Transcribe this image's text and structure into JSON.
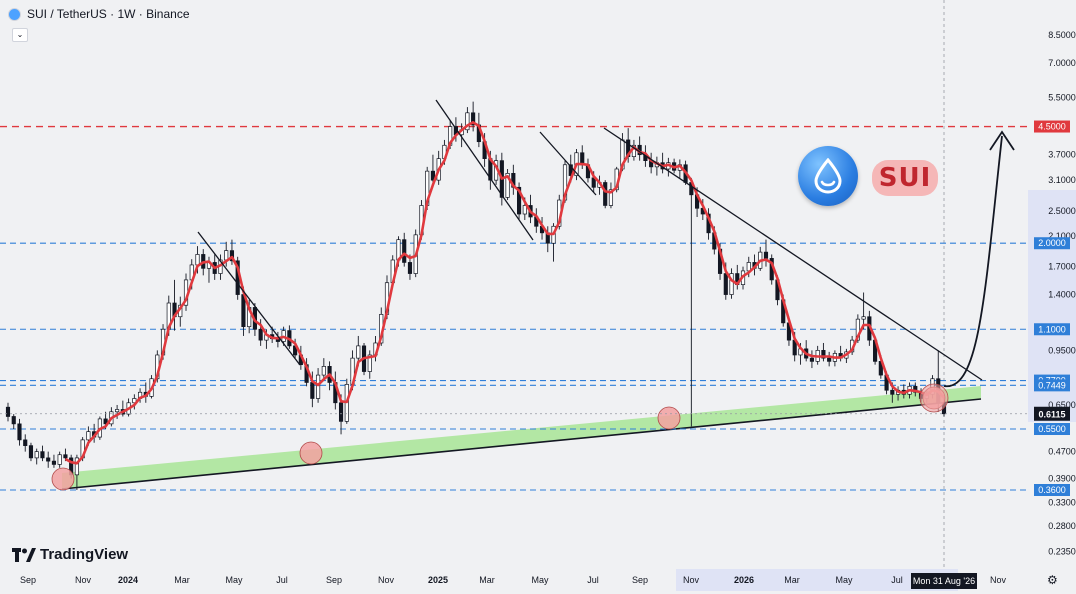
{
  "header": {
    "title": "SUI / TetherUS · 1W · Binance",
    "collapse_icon": "chevron-down-icon"
  },
  "branding": {
    "tradingview": "TradingView",
    "coin_badge": "SUI"
  },
  "colors": {
    "background": "#f0f1f3",
    "candle_up": "#ffffff",
    "candle_down": "#131722",
    "ma_line": "#e0393e",
    "resistance": "#e0393e",
    "support_level": "#2f7fd8",
    "trendline": "#131722",
    "channel_fill": "#9fe38a",
    "circle_fill": "#f2a1a1"
  },
  "chart_data": {
    "type": "candlestick",
    "symbol": "SUI / TetherUS",
    "interval": "1W",
    "exchange": "Binance",
    "y_scale": "log",
    "ylim": [
      0.23,
      9.5
    ],
    "y_ticks": [
      "8.5000",
      "7.0000",
      "5.5000",
      "3.7000",
      "3.1000",
      "2.5000",
      "2.1000",
      "1.7000",
      "1.4000",
      "0.9500",
      "0.6500",
      "0.4700",
      "0.3900",
      "0.3300",
      "0.2800",
      "0.2350"
    ],
    "x_ticks": [
      "Sep",
      "Nov",
      "2024",
      "Mar",
      "May",
      "Jul",
      "Sep",
      "Nov",
      "2025",
      "Mar",
      "May",
      "Jul",
      "Sep",
      "Nov",
      "2026",
      "Mar",
      "May",
      "Jul",
      "Nov"
    ],
    "crosshair_label": "Mon 31 Aug '26",
    "current_price": "0.6115",
    "horizontal_levels": [
      {
        "value": 4.5,
        "label": "4.5000",
        "style": "resistance"
      },
      {
        "value": 2.0,
        "label": "2.0000",
        "style": "support"
      },
      {
        "value": 1.1,
        "label": "1.1000",
        "style": "support"
      },
      {
        "value": 0.77,
        "label": "0.7700",
        "style": "support"
      },
      {
        "value": 0.7449,
        "label": "0.7449",
        "style": "support"
      },
      {
        "value": 0.55,
        "label": "0.5500",
        "style": "support"
      },
      {
        "value": 0.36,
        "label": "0.3600",
        "style": "support"
      }
    ],
    "ohlc": [
      [
        0.64,
        0.66,
        0.58,
        0.6
      ],
      [
        0.6,
        0.61,
        0.55,
        0.57
      ],
      [
        0.57,
        0.59,
        0.49,
        0.51
      ],
      [
        0.51,
        0.53,
        0.47,
        0.49
      ],
      [
        0.49,
        0.5,
        0.44,
        0.45
      ],
      [
        0.45,
        0.48,
        0.43,
        0.47
      ],
      [
        0.47,
        0.49,
        0.44,
        0.45
      ],
      [
        0.45,
        0.47,
        0.42,
        0.44
      ],
      [
        0.44,
        0.46,
        0.42,
        0.43
      ],
      [
        0.43,
        0.47,
        0.42,
        0.46
      ],
      [
        0.46,
        0.48,
        0.44,
        0.45
      ],
      [
        0.45,
        0.46,
        0.39,
        0.4
      ],
      [
        0.4,
        0.46,
        0.36,
        0.45
      ],
      [
        0.45,
        0.52,
        0.44,
        0.51
      ],
      [
        0.51,
        0.56,
        0.49,
        0.54
      ],
      [
        0.54,
        0.57,
        0.5,
        0.52
      ],
      [
        0.52,
        0.6,
        0.51,
        0.59
      ],
      [
        0.59,
        0.62,
        0.55,
        0.57
      ],
      [
        0.57,
        0.64,
        0.56,
        0.62
      ],
      [
        0.62,
        0.65,
        0.59,
        0.63
      ],
      [
        0.63,
        0.67,
        0.6,
        0.61
      ],
      [
        0.61,
        0.68,
        0.6,
        0.66
      ],
      [
        0.66,
        0.7,
        0.63,
        0.68
      ],
      [
        0.68,
        0.73,
        0.66,
        0.71
      ],
      [
        0.71,
        0.76,
        0.66,
        0.69
      ],
      [
        0.69,
        0.8,
        0.68,
        0.78
      ],
      [
        0.78,
        0.95,
        0.76,
        0.92
      ],
      [
        0.92,
        1.14,
        0.89,
        1.1
      ],
      [
        1.1,
        1.39,
        1.05,
        1.32
      ],
      [
        1.32,
        1.55,
        1.09,
        1.2
      ],
      [
        1.2,
        1.38,
        1.12,
        1.3
      ],
      [
        1.3,
        1.62,
        1.25,
        1.55
      ],
      [
        1.55,
        1.79,
        1.45,
        1.72
      ],
      [
        1.72,
        1.96,
        1.62,
        1.85
      ],
      [
        1.85,
        1.92,
        1.6,
        1.68
      ],
      [
        1.68,
        1.82,
        1.52,
        1.75
      ],
      [
        1.75,
        1.86,
        1.55,
        1.62
      ],
      [
        1.62,
        1.85,
        1.55,
        1.78
      ],
      [
        1.78,
        2.02,
        1.7,
        1.9
      ],
      [
        1.9,
        2.05,
        1.72,
        1.77
      ],
      [
        1.77,
        1.82,
        1.35,
        1.4
      ],
      [
        1.4,
        1.48,
        1.05,
        1.12
      ],
      [
        1.12,
        1.35,
        1.07,
        1.28
      ],
      [
        1.28,
        1.32,
        1.05,
        1.1
      ],
      [
        1.1,
        1.18,
        0.98,
        1.02
      ],
      [
        1.02,
        1.1,
        0.96,
        1.06
      ],
      [
        1.06,
        1.12,
        1.0,
        1.03
      ],
      [
        1.03,
        1.08,
        0.97,
        1.01
      ],
      [
        1.01,
        1.12,
        0.98,
        1.09
      ],
      [
        1.09,
        1.13,
        0.96,
        0.98
      ],
      [
        0.98,
        1.03,
        0.9,
        0.92
      ],
      [
        0.92,
        0.98,
        0.83,
        0.86
      ],
      [
        0.86,
        0.9,
        0.74,
        0.76
      ],
      [
        0.76,
        0.82,
        0.64,
        0.68
      ],
      [
        0.68,
        0.84,
        0.66,
        0.8
      ],
      [
        0.8,
        0.9,
        0.77,
        0.85
      ],
      [
        0.85,
        0.88,
        0.72,
        0.76
      ],
      [
        0.76,
        0.82,
        0.63,
        0.66
      ],
      [
        0.66,
        0.7,
        0.53,
        0.58
      ],
      [
        0.58,
        0.78,
        0.57,
        0.75
      ],
      [
        0.75,
        0.95,
        0.72,
        0.9
      ],
      [
        0.9,
        1.05,
        0.85,
        0.98
      ],
      [
        0.98,
        1.0,
        0.8,
        0.82
      ],
      [
        0.82,
        0.95,
        0.78,
        0.92
      ],
      [
        0.92,
        1.05,
        0.88,
        1.0
      ],
      [
        1.0,
        1.28,
        0.98,
        1.22
      ],
      [
        1.22,
        1.6,
        1.18,
        1.52
      ],
      [
        1.52,
        1.84,
        1.48,
        1.78
      ],
      [
        1.78,
        2.1,
        1.7,
        2.05
      ],
      [
        2.05,
        2.15,
        1.7,
        1.75
      ],
      [
        1.75,
        1.85,
        1.55,
        1.62
      ],
      [
        1.62,
        2.2,
        1.58,
        2.12
      ],
      [
        2.12,
        2.7,
        2.05,
        2.6
      ],
      [
        2.6,
        3.4,
        2.52,
        3.3
      ],
      [
        3.3,
        3.7,
        2.95,
        3.1
      ],
      [
        3.1,
        3.8,
        3.0,
        3.6
      ],
      [
        3.6,
        4.1,
        3.45,
        3.95
      ],
      [
        3.95,
        4.7,
        3.85,
        4.5
      ],
      [
        4.5,
        4.8,
        4.05,
        4.25
      ],
      [
        4.25,
        4.6,
        3.9,
        4.4
      ],
      [
        4.4,
        5.15,
        4.3,
        4.95
      ],
      [
        4.95,
        5.35,
        4.35,
        4.55
      ],
      [
        4.55,
        4.95,
        3.9,
        4.05
      ],
      [
        4.05,
        4.3,
        3.4,
        3.6
      ],
      [
        3.6,
        3.8,
        2.9,
        3.1
      ],
      [
        3.1,
        3.7,
        3.0,
        3.55
      ],
      [
        3.55,
        3.75,
        2.6,
        2.75
      ],
      [
        2.75,
        3.35,
        2.7,
        3.25
      ],
      [
        3.25,
        3.45,
        2.8,
        2.95
      ],
      [
        2.95,
        3.05,
        2.35,
        2.45
      ],
      [
        2.45,
        2.75,
        2.35,
        2.6
      ],
      [
        2.6,
        2.8,
        2.3,
        2.4
      ],
      [
        2.4,
        2.55,
        2.15,
        2.25
      ],
      [
        2.25,
        2.4,
        2.05,
        2.15
      ],
      [
        2.15,
        2.25,
        1.88,
        2.0
      ],
      [
        2.0,
        2.3,
        1.76,
        2.25
      ],
      [
        2.25,
        2.8,
        2.2,
        2.7
      ],
      [
        2.7,
        3.55,
        2.65,
        3.45
      ],
      [
        3.45,
        3.7,
        3.05,
        3.2
      ],
      [
        3.2,
        3.85,
        3.1,
        3.75
      ],
      [
        3.75,
        3.95,
        3.35,
        3.45
      ],
      [
        3.45,
        3.6,
        3.05,
        3.15
      ],
      [
        3.15,
        3.3,
        2.85,
        2.95
      ],
      [
        2.95,
        3.2,
        2.8,
        3.05
      ],
      [
        3.05,
        3.1,
        2.55,
        2.6
      ],
      [
        2.6,
        3.05,
        2.55,
        2.9
      ],
      [
        2.9,
        3.4,
        2.85,
        3.35
      ],
      [
        3.35,
        4.3,
        3.3,
        4.1
      ],
      [
        4.1,
        4.45,
        3.5,
        3.65
      ],
      [
        3.65,
        4.1,
        3.55,
        3.95
      ],
      [
        3.95,
        4.2,
        3.55,
        3.7
      ],
      [
        3.7,
        3.95,
        3.4,
        3.55
      ],
      [
        3.55,
        3.75,
        3.25,
        3.4
      ],
      [
        3.4,
        3.65,
        3.2,
        3.5
      ],
      [
        3.5,
        3.75,
        3.25,
        3.35
      ],
      [
        3.35,
        3.62,
        3.18,
        3.5
      ],
      [
        3.5,
        3.6,
        3.25,
        3.32
      ],
      [
        3.32,
        3.58,
        3.15,
        3.45
      ],
      [
        3.45,
        3.55,
        3.0,
        3.05
      ],
      [
        3.05,
        3.15,
        0.56,
        2.8
      ],
      [
        2.8,
        2.95,
        2.4,
        2.55
      ],
      [
        2.55,
        2.72,
        2.35,
        2.45
      ],
      [
        2.45,
        2.55,
        2.05,
        2.15
      ],
      [
        2.15,
        2.25,
        1.85,
        1.92
      ],
      [
        1.92,
        2.0,
        1.55,
        1.62
      ],
      [
        1.62,
        1.75,
        1.35,
        1.4
      ],
      [
        1.4,
        1.68,
        1.36,
        1.62
      ],
      [
        1.62,
        1.72,
        1.45,
        1.5
      ],
      [
        1.5,
        1.7,
        1.45,
        1.65
      ],
      [
        1.65,
        1.82,
        1.58,
        1.75
      ],
      [
        1.75,
        1.85,
        1.6,
        1.68
      ],
      [
        1.68,
        1.95,
        1.65,
        1.88
      ],
      [
        1.88,
        2.05,
        1.7,
        1.8
      ],
      [
        1.8,
        1.85,
        1.5,
        1.55
      ],
      [
        1.55,
        1.6,
        1.3,
        1.35
      ],
      [
        1.35,
        1.4,
        1.12,
        1.15
      ],
      [
        1.15,
        1.2,
        0.98,
        1.02
      ],
      [
        1.02,
        1.08,
        0.88,
        0.92
      ],
      [
        0.92,
        1.0,
        0.86,
        0.96
      ],
      [
        0.96,
        1.02,
        0.88,
        0.9
      ],
      [
        0.9,
        0.95,
        0.84,
        0.88
      ],
      [
        0.88,
        0.98,
        0.86,
        0.95
      ],
      [
        0.95,
        1.0,
        0.88,
        0.9
      ],
      [
        0.9,
        0.94,
        0.85,
        0.88
      ],
      [
        0.88,
        0.95,
        0.85,
        0.93
      ],
      [
        0.93,
        0.98,
        0.88,
        0.9
      ],
      [
        0.9,
        0.96,
        0.87,
        0.94
      ],
      [
        0.94,
        1.05,
        0.92,
        1.02
      ],
      [
        1.02,
        1.22,
        1.0,
        1.18
      ],
      [
        1.18,
        1.42,
        1.1,
        1.2
      ],
      [
        1.2,
        1.25,
        0.98,
        1.02
      ],
      [
        1.02,
        1.05,
        0.86,
        0.88
      ],
      [
        0.88,
        0.92,
        0.78,
        0.8
      ],
      [
        0.8,
        0.82,
        0.7,
        0.72
      ],
      [
        0.72,
        0.76,
        0.66,
        0.7
      ],
      [
        0.7,
        0.74,
        0.67,
        0.72
      ],
      [
        0.72,
        0.75,
        0.68,
        0.7
      ],
      [
        0.7,
        0.76,
        0.68,
        0.74
      ],
      [
        0.74,
        0.76,
        0.69,
        0.71
      ],
      [
        0.71,
        0.73,
        0.66,
        0.68
      ],
      [
        0.68,
        0.72,
        0.66,
        0.7
      ],
      [
        0.7,
        0.8,
        0.68,
        0.78
      ],
      [
        0.78,
        0.95,
        0.62,
        0.66
      ],
      [
        0.66,
        0.7,
        0.6,
        0.6115
      ]
    ],
    "moving_average": "red line over closes",
    "annotations": {
      "support_trendline": "rising support with green channel",
      "downtrend_resistance": "descending trendline",
      "projection_arrow": "breakout projection to 4.5000",
      "touch_points": 5
    }
  }
}
